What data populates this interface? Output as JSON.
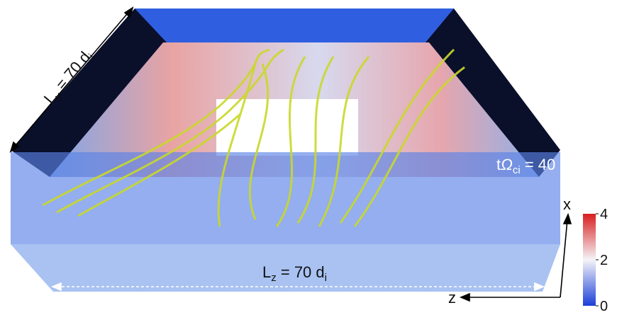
{
  "annotations": {
    "ly": {
      "base": "L",
      "subscript": "y",
      "equals": " = 70 d",
      "unit_subscript": "i"
    },
    "time": {
      "base": "t",
      "symbol": "Ω",
      "subscript": "ci",
      "equals": " = 40"
    },
    "lz": {
      "base": "L",
      "subscript": "z",
      "equals": " = 70 d",
      "unit_subscript": "i"
    },
    "axis_x": "x",
    "axis_z": "z"
  },
  "colorbar": {
    "ylim": [
      0,
      4
    ],
    "ticks": [
      0,
      2,
      4
    ],
    "colors": [
      "#1a3fd8",
      "#f4f4f8",
      "#d81e1e"
    ]
  }
}
